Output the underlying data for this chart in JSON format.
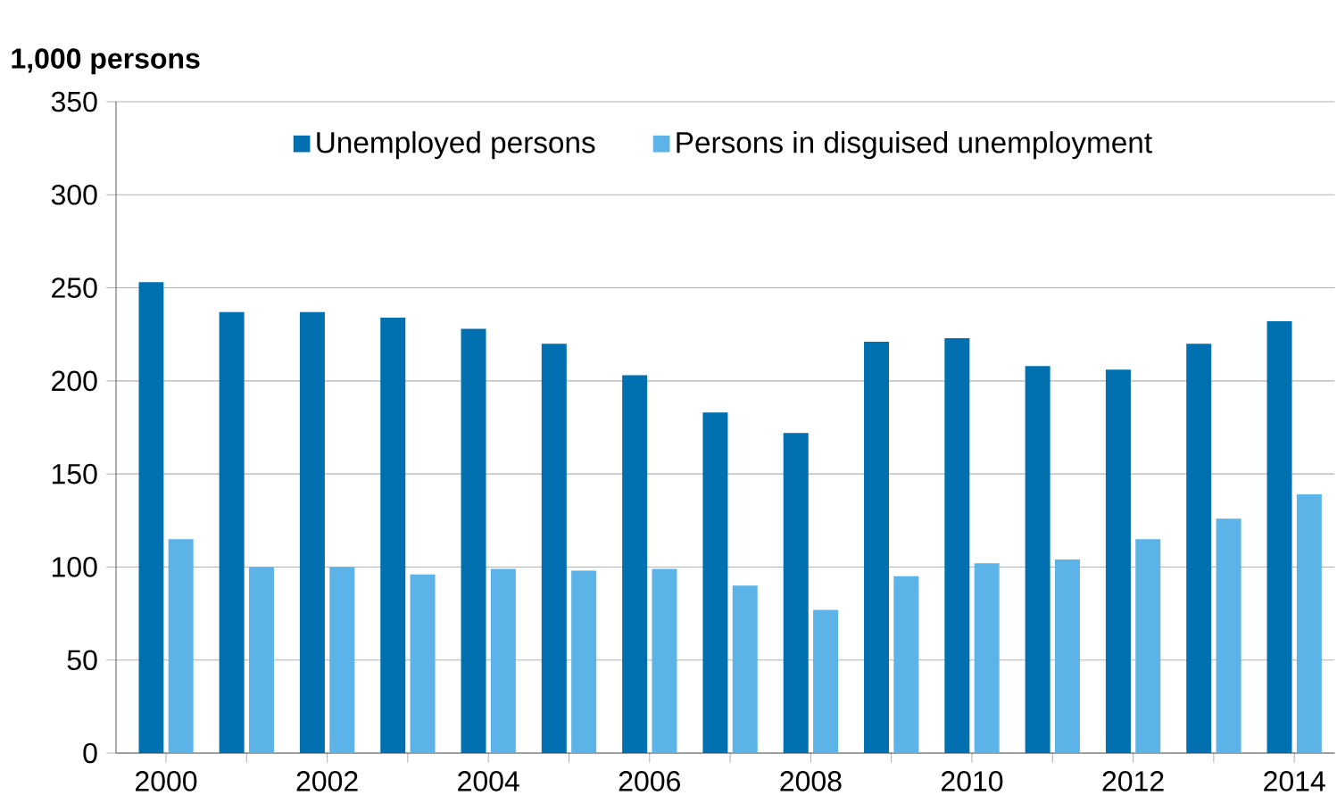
{
  "chart_data": {
    "type": "bar",
    "ylabel": "1,000 persons",
    "categories": [
      "2000",
      null,
      "2002",
      null,
      "2004",
      null,
      "2006",
      null,
      "2008",
      null,
      "2010",
      null,
      "2012",
      null,
      "2014"
    ],
    "series": [
      {
        "name": "Unemployed persons",
        "color": "#0070b0",
        "values": [
          253,
          237,
          237,
          234,
          228,
          220,
          203,
          183,
          172,
          221,
          223,
          208,
          206,
          220,
          232
        ]
      },
      {
        "name": "Persons in disguised unemployment",
        "color": "#5cb3e8",
        "values": [
          115,
          100,
          100,
          96,
          99,
          98,
          99,
          90,
          77,
          95,
          102,
          104,
          115,
          126,
          139
        ]
      }
    ],
    "ylim": [
      0,
      350
    ],
    "yticks": [
      0,
      50,
      100,
      150,
      200,
      250,
      300,
      350
    ],
    "grid": "y",
    "legend": "top"
  }
}
